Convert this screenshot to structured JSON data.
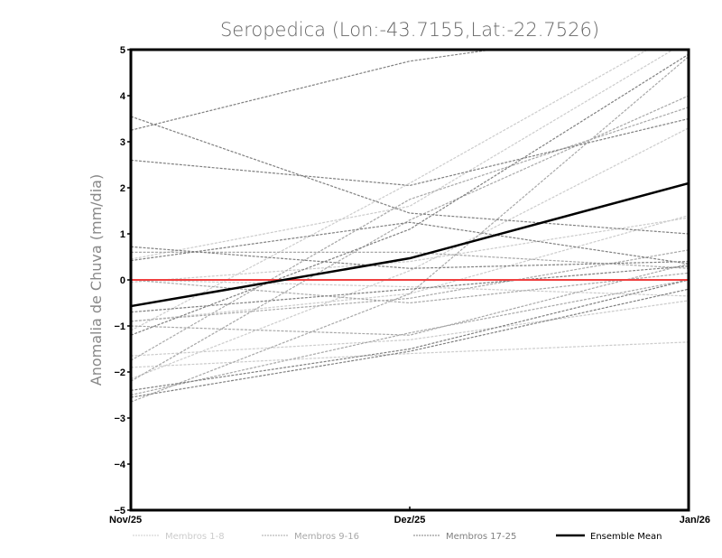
{
  "chart_data": {
    "type": "line",
    "title": "Seropedica (Lon:-43.7155,Lat:-22.7526)",
    "xlabel": "",
    "ylabel": "Anomalia de Chuva (mm/dia)",
    "categories": [
      "Nov/25",
      "Dez/25",
      "Jan/26"
    ],
    "ylim": [
      -5,
      5
    ],
    "yticks": [
      "5",
      "4",
      "3",
      "2",
      "1",
      "0",
      "-1",
      "-2",
      "-3",
      "-4",
      "-5"
    ],
    "grid": false,
    "reference_line": {
      "value": 0,
      "color": "#f04040"
    },
    "legend_position": "bottom",
    "groups": [
      {
        "name": "Membros 1-8",
        "color": "#cccccc",
        "series": [
          [
            0.45,
            1.6,
            5.2
          ],
          [
            -0.05,
            0.4,
            1.35
          ],
          [
            -1.1,
            2.1,
            5.5
          ],
          [
            -1.65,
            -1.3,
            -0.45
          ],
          [
            -1.9,
            -1.6,
            -1.35
          ],
          [
            -2.15,
            0.2,
            3.3
          ],
          [
            0.0,
            -0.15,
            -0.35
          ],
          [
            -0.9,
            -0.3,
            1.4
          ]
        ]
      },
      {
        "name": "Membros 9-16",
        "color": "#a8a8a8",
        "series": [
          [
            -0.9,
            -0.4,
            0.65
          ],
          [
            -1.75,
            1.75,
            3.75
          ],
          [
            -2.2,
            1.3,
            4.0
          ],
          [
            -2.65,
            -0.3,
            4.85
          ],
          [
            0.6,
            0.6,
            0.25
          ],
          [
            0.0,
            -0.5,
            0.15
          ],
          [
            -1.0,
            -1.2,
            0.35
          ],
          [
            -2.5,
            -1.15,
            0.0
          ]
        ]
      },
      {
        "name": "Membros 17-25",
        "color": "#808080",
        "series": [
          [
            3.25,
            4.75,
            5.6
          ],
          [
            3.55,
            1.45,
            1.0
          ],
          [
            2.6,
            2.05,
            3.5
          ],
          [
            0.72,
            0.25,
            0.4
          ],
          [
            0.42,
            1.25,
            0.35
          ],
          [
            -0.7,
            -0.2,
            0.3
          ],
          [
            -1.2,
            1.1,
            4.9
          ],
          [
            -2.4,
            -1.5,
            0.0
          ],
          [
            -2.55,
            -1.55,
            -0.2
          ]
        ]
      }
    ],
    "ensemble_mean": {
      "name": "Ensemble Mean",
      "color": "#000000",
      "values": [
        -0.57,
        0.47,
        2.1
      ]
    }
  }
}
